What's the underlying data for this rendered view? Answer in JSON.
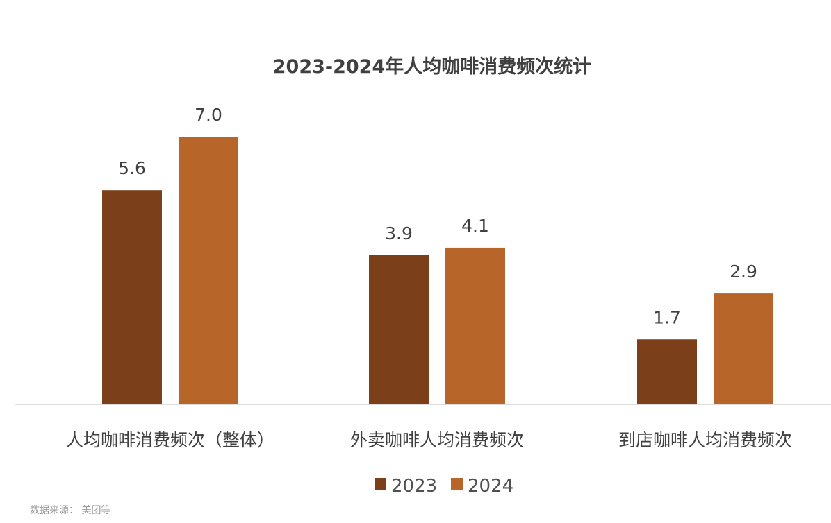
{
  "chart_data": {
    "type": "bar",
    "title": "2023-2024年人均咖啡消费频次统计",
    "categories": [
      "人均咖啡消费频次（整体）",
      "外卖咖啡人均消费频次",
      "到店咖啡人均消费频次"
    ],
    "series": [
      {
        "name": "2023",
        "values": [
          5.6,
          3.9,
          1.7
        ],
        "color": "#7B3F1A"
      },
      {
        "name": "2024",
        "values": [
          7.0,
          4.1,
          2.9
        ],
        "color": "#B8652A"
      }
    ],
    "ylim": [
      0,
      7.0
    ],
    "grid": false,
    "legend": "bottom",
    "data_labels": true
  },
  "source": "数据来源： 美团等"
}
